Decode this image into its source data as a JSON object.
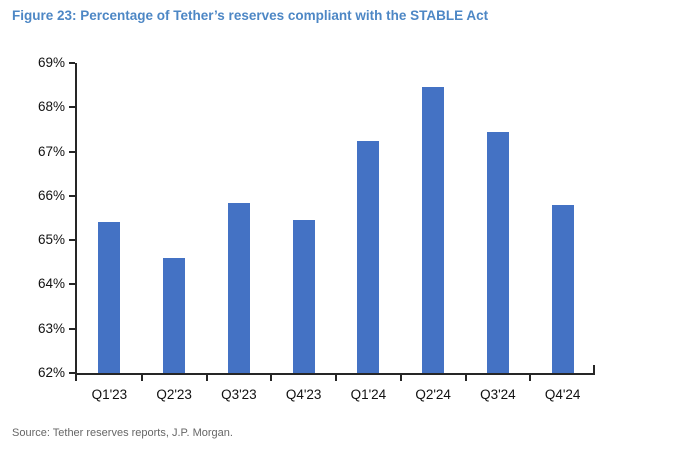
{
  "figure": {
    "title": "Figure 23: Percentage of Tether’s reserves compliant with the STABLE Act",
    "source": "Source: Tether reserves reports, J.P. Morgan."
  },
  "colors": {
    "title_blue": "#4d87c5",
    "bar_blue": "#4472c4",
    "axis": "#262626",
    "label": "#111111",
    "source_gray": "#666666"
  },
  "chart_data": {
    "type": "bar",
    "title": "Figure 23: Percentage of Tether’s reserves compliant with the STABLE Act",
    "categories": [
      "Q1'23",
      "Q2'23",
      "Q3'23",
      "Q4'23",
      "Q1'24",
      "Q2'24",
      "Q3'24",
      "Q4'24"
    ],
    "values": [
      65.4,
      64.6,
      65.85,
      65.45,
      67.25,
      68.45,
      67.45,
      65.8
    ],
    "unit": "%",
    "xlabel": "",
    "ylabel": "",
    "ylim": [
      62,
      69
    ],
    "ytick_step": 1,
    "ytick_labels": [
      "69%",
      "68%",
      "67%",
      "66%",
      "65%",
      "64%",
      "63%",
      "62%"
    ],
    "grid": false,
    "legend": "none",
    "bar_color": "#4472c4",
    "source": "Source: Tether reserves reports, J.P. Morgan."
  }
}
